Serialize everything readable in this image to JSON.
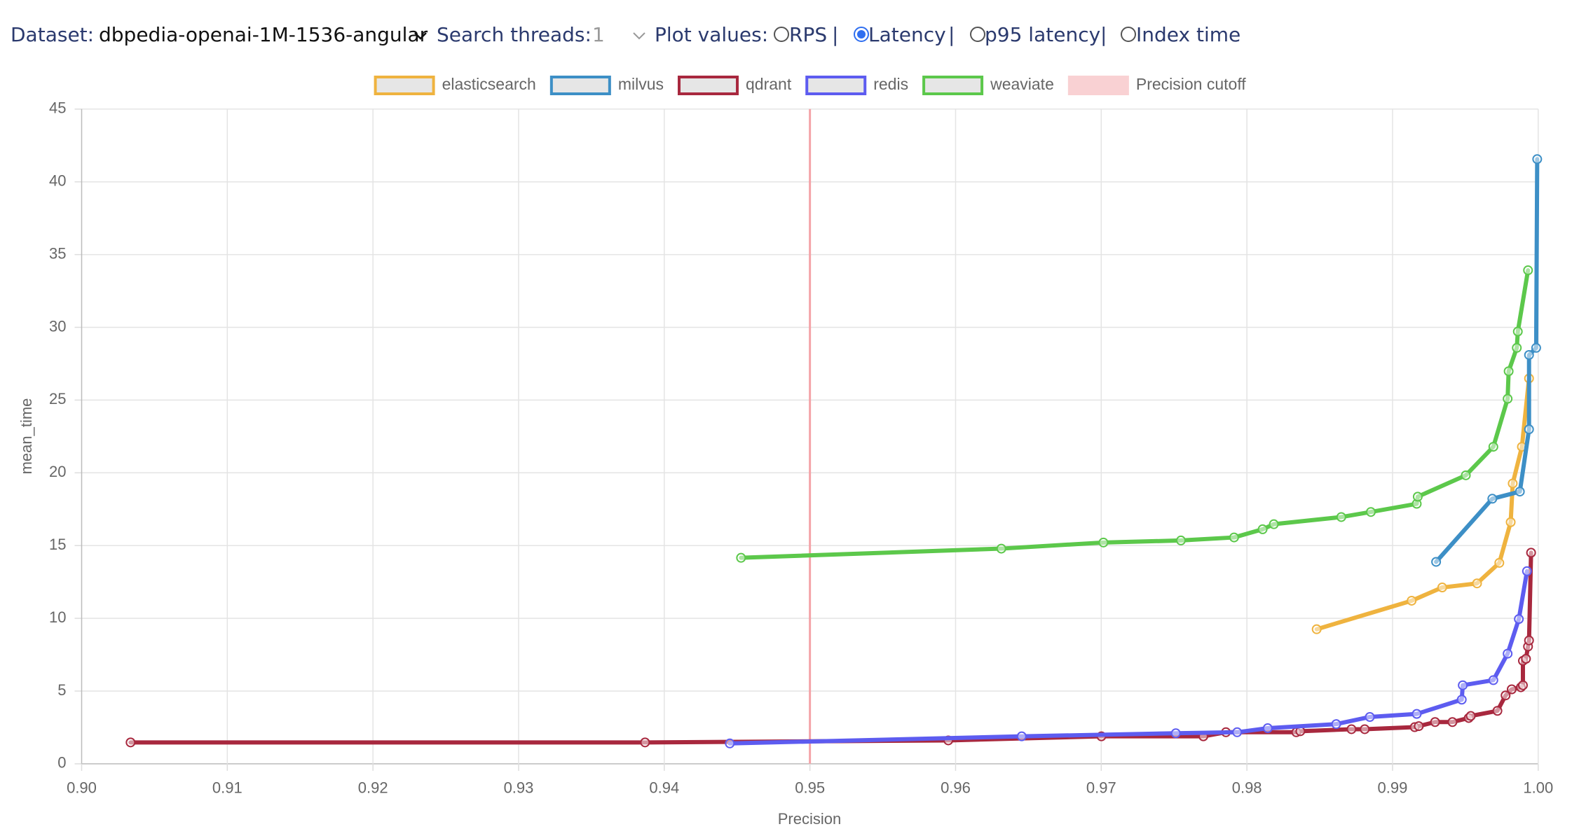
{
  "controls": {
    "dataset_label": "Dataset:",
    "dataset_value": "dbpedia-openai-1M-1536-angular",
    "threads_label": "Search threads:",
    "threads_value": "1",
    "plot_label": "Plot values:",
    "separator": "|",
    "plot_options": [
      "RPS",
      "Latency",
      "p95 latency",
      "Index time"
    ],
    "selected": 1
  },
  "chart_data": {
    "type": "line",
    "xlabel": "Precision",
    "ylabel": "mean_time",
    "xlim": [
      0.9,
      1.0
    ],
    "ylim": [
      0,
      45
    ],
    "xticks": [
      {
        "value": 0.9,
        "label": "0.90"
      },
      0.91,
      0.92,
      0.93,
      0.94,
      0.95,
      0.96,
      0.97,
      0.98,
      0.99,
      {
        "value": 1.0,
        "label": "1.00"
      }
    ],
    "yticks": [
      0,
      5,
      10,
      15,
      20,
      25,
      30,
      35,
      40,
      45
    ],
    "grid": true,
    "legend": "top",
    "cutoff": {
      "name": "Precision cutoff",
      "value": 0.95,
      "color": "#f4a3a8"
    },
    "series": [
      {
        "name": "elasticsearch",
        "color": "#efb33f",
        "x": [
          0.98479,
          0.99131,
          0.99341,
          0.9958,
          0.99733,
          0.99811,
          0.99825,
          0.99888,
          0.99937
        ],
        "values": [
          9.25,
          11.21,
          12.12,
          12.4,
          13.81,
          16.61,
          19.27,
          21.79,
          26.49
        ]
      },
      {
        "name": "milvus",
        "color": "#3d8fc6",
        "x": [
          0.99299,
          0.99685,
          0.99874,
          0.99937,
          0.99937,
          0.99986,
          0.99993
        ],
        "values": [
          13.88,
          18.22,
          18.71,
          22.99,
          28.1,
          28.59,
          41.56
        ]
      },
      {
        "name": "qdrant",
        "color": "#a8283e",
        "x": [
          0.90336,
          0.93868,
          0.9595,
          0.97001,
          0.97701,
          0.97856,
          0.98339,
          0.98367,
          0.98718,
          0.98809,
          0.99152,
          0.9918,
          0.99292,
          0.99411,
          0.99523,
          0.99537,
          0.9972,
          0.99776,
          0.99818,
          0.99881,
          0.99895,
          0.99895,
          0.99916,
          0.9993,
          0.99937,
          0.99951
        ],
        "values": [
          1.47,
          1.47,
          1.61,
          1.89,
          1.89,
          2.17,
          2.17,
          2.24,
          2.38,
          2.38,
          2.52,
          2.59,
          2.87,
          2.87,
          3.15,
          3.29,
          3.64,
          4.7,
          5.12,
          5.26,
          5.4,
          7.08,
          7.22,
          8.06,
          8.48,
          14.51
        ]
      },
      {
        "name": "redis",
        "color": "#5d5cf0",
        "x": [
          0.9445,
          0.96454,
          0.97512,
          0.97933,
          0.98143,
          0.98613,
          0.98844,
          0.99166,
          0.99475,
          0.99482,
          0.99692,
          0.9979,
          0.99867,
          0.99923
        ],
        "values": [
          1.4,
          1.89,
          2.1,
          2.17,
          2.45,
          2.73,
          3.22,
          3.43,
          4.41,
          5.4,
          5.75,
          7.57,
          9.95,
          13.24
        ]
      },
      {
        "name": "weaviate",
        "color": "#5cc84b",
        "x": [
          0.94527,
          0.96314,
          0.97015,
          0.97547,
          0.97912,
          0.98108,
          0.98185,
          0.98648,
          0.98851,
          0.99166,
          0.99173,
          0.99503,
          0.99692,
          0.9979,
          0.99797,
          0.99853,
          0.9986,
          0.9993
        ],
        "values": [
          14.16,
          14.79,
          15.21,
          15.35,
          15.56,
          16.12,
          16.47,
          16.96,
          17.31,
          17.87,
          18.36,
          19.83,
          21.79,
          25.09,
          26.98,
          28.59,
          29.71,
          33.92
        ]
      }
    ]
  }
}
